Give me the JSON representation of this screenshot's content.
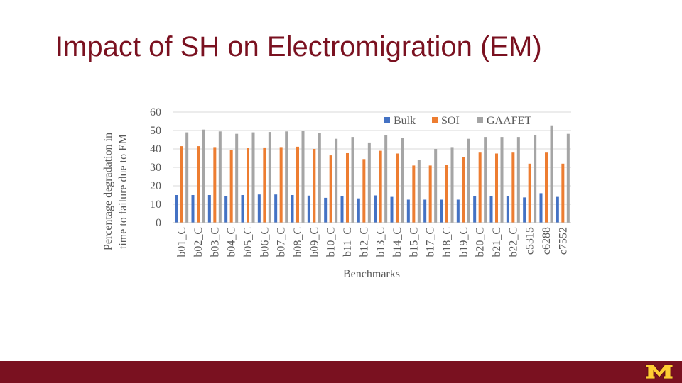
{
  "slide": {
    "title": "Impact of SH on Electromigration (EM)"
  },
  "colors": {
    "bulk": "#4472c4",
    "soi": "#ed7d31",
    "gaafet": "#a5a5a5",
    "brand": "#7a1120",
    "logo": "#ffcc33"
  },
  "logo": {
    "name": "university-block-m-logo"
  },
  "chart_data": {
    "type": "bar",
    "title": "",
    "xlabel": "Benchmarks",
    "ylabel": [
      "Percentage degradation in",
      "time to failure due to EM"
    ],
    "ylim": [
      0,
      60
    ],
    "yticks": [
      0,
      10,
      20,
      30,
      40,
      50,
      60
    ],
    "grid": true,
    "legend": "top-right",
    "categories": [
      "b01_C",
      "b02_C",
      "b03_C",
      "b04_C",
      "b05_C",
      "b06_C",
      "b07_C",
      "b08_C",
      "b09_C",
      "b10_C",
      "b11_C",
      "b12_C",
      "b13_C",
      "b14_C",
      "b15_C",
      "b17_C",
      "b18_C",
      "b19_C",
      "b20_C",
      "b21_C",
      "b22_C",
      "c5315",
      "c6288",
      "c7552"
    ],
    "series": [
      {
        "name": "Bulk",
        "values": [
          15,
          15,
          15,
          14.5,
          15,
          15.3,
          15.3,
          15,
          14.7,
          13.5,
          14.3,
          13.2,
          14.8,
          14,
          12.5,
          12.5,
          12.5,
          12.5,
          14.3,
          14.3,
          14.3,
          13.7,
          16,
          14
        ]
      },
      {
        "name": "SOI",
        "values": [
          41.5,
          41.5,
          41,
          39.5,
          40.5,
          40.8,
          41,
          41.2,
          40,
          36.5,
          37.7,
          34.5,
          39,
          37.5,
          31,
          31,
          31.5,
          35.5,
          38,
          37.5,
          38,
          32,
          38,
          32
        ]
      },
      {
        "name": "GAAFET",
        "values": [
          49,
          50.5,
          49.5,
          48.2,
          49,
          49.2,
          49.5,
          49.7,
          48.7,
          45.5,
          46.5,
          43.5,
          47.3,
          46,
          34,
          40,
          41,
          45.5,
          46.5,
          46.5,
          46.5,
          47.7,
          52.8,
          48.2
        ]
      }
    ]
  }
}
